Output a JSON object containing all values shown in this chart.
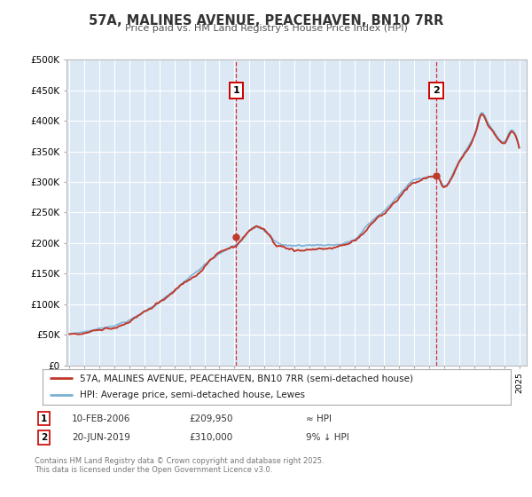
{
  "title": "57A, MALINES AVENUE, PEACEHAVEN, BN10 7RR",
  "subtitle": "Price paid vs. HM Land Registry's House Price Index (HPI)",
  "plot_bg_color": "#dce9f5",
  "hpi_color": "#7bafd4",
  "price_color": "#c0392b",
  "marker1_date": 2006.12,
  "marker1_price": 209950,
  "marker2_date": 2019.47,
  "marker2_price": 310000,
  "legend_line1": "57A, MALINES AVENUE, PEACEHAVEN, BN10 7RR (semi-detached house)",
  "legend_line2": "HPI: Average price, semi-detached house, Lewes",
  "ylim": [
    0,
    500000
  ],
  "yticks": [
    0,
    50000,
    100000,
    150000,
    200000,
    250000,
    300000,
    350000,
    400000,
    450000,
    500000
  ],
  "ytick_labels": [
    "£0",
    "£50K",
    "£100K",
    "£150K",
    "£200K",
    "£250K",
    "£300K",
    "£350K",
    "£400K",
    "£450K",
    "£500K"
  ],
  "footer1": "Contains HM Land Registry data © Crown copyright and database right 2025.",
  "footer2": "This data is licensed under the Open Government Licence v3.0.",
  "table_rows": [
    [
      "1",
      "10-FEB-2006",
      "£209,950",
      "≈ HPI"
    ],
    [
      "2",
      "20-JUN-2019",
      "£310,000",
      "9% ↓ HPI"
    ]
  ]
}
